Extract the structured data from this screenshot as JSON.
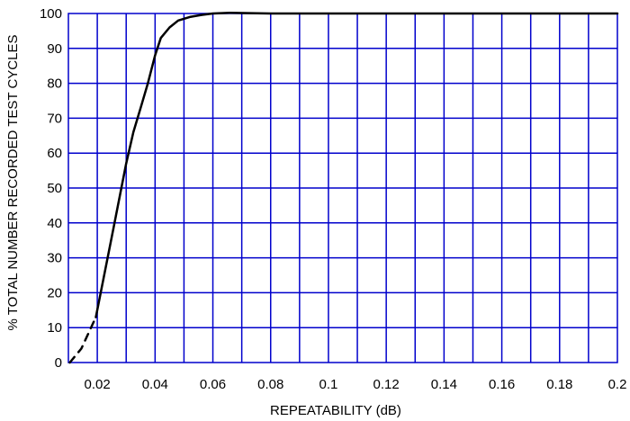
{
  "chart_data": {
    "type": "line",
    "title": "",
    "xlabel": "REPEATABILITY (dB)",
    "ylabel": "% TOTAL NUMBER RECORDED TEST CYCLES",
    "xlim": [
      0.01,
      0.2
    ],
    "ylim": [
      0,
      100
    ],
    "x_ticks": [
      0.02,
      0.04,
      0.06,
      0.08,
      0.1,
      0.12,
      0.14,
      0.16,
      0.18,
      0.2
    ],
    "x_tick_labels": [
      "0.02",
      "0.04",
      "0.06",
      "0.08",
      "0.1",
      "0.12",
      "0.14",
      "0.16",
      "0.18",
      "0.2"
    ],
    "y_ticks": [
      0,
      10,
      20,
      30,
      40,
      50,
      60,
      70,
      80,
      90,
      100
    ],
    "y_tick_labels": [
      "0",
      "10",
      "20",
      "30",
      "40",
      "50",
      "60",
      "70",
      "80",
      "90",
      "100"
    ],
    "grid": true,
    "grid_x_step": 0.01,
    "grid_y_step": 10,
    "grid_color": "#0000cc",
    "line_color": "#000000",
    "series": [
      {
        "style": "dashed",
        "x": [
          0.0105,
          0.0145,
          0.0195
        ],
        "y": [
          0,
          4,
          13
        ]
      },
      {
        "style": "solid",
        "x": [
          0.0195,
          0.025,
          0.03,
          0.0325,
          0.035,
          0.0375,
          0.04,
          0.042,
          0.045,
          0.048,
          0.052,
          0.056,
          0.06,
          0.066,
          0.08,
          0.1,
          0.12,
          0.14,
          0.16,
          0.18,
          0.2
        ],
        "y": [
          13,
          36,
          57,
          66,
          73,
          80,
          88,
          93,
          96,
          98,
          99,
          99.6,
          100,
          100.2,
          100,
          100,
          100,
          100,
          100,
          100,
          100
        ]
      }
    ]
  }
}
